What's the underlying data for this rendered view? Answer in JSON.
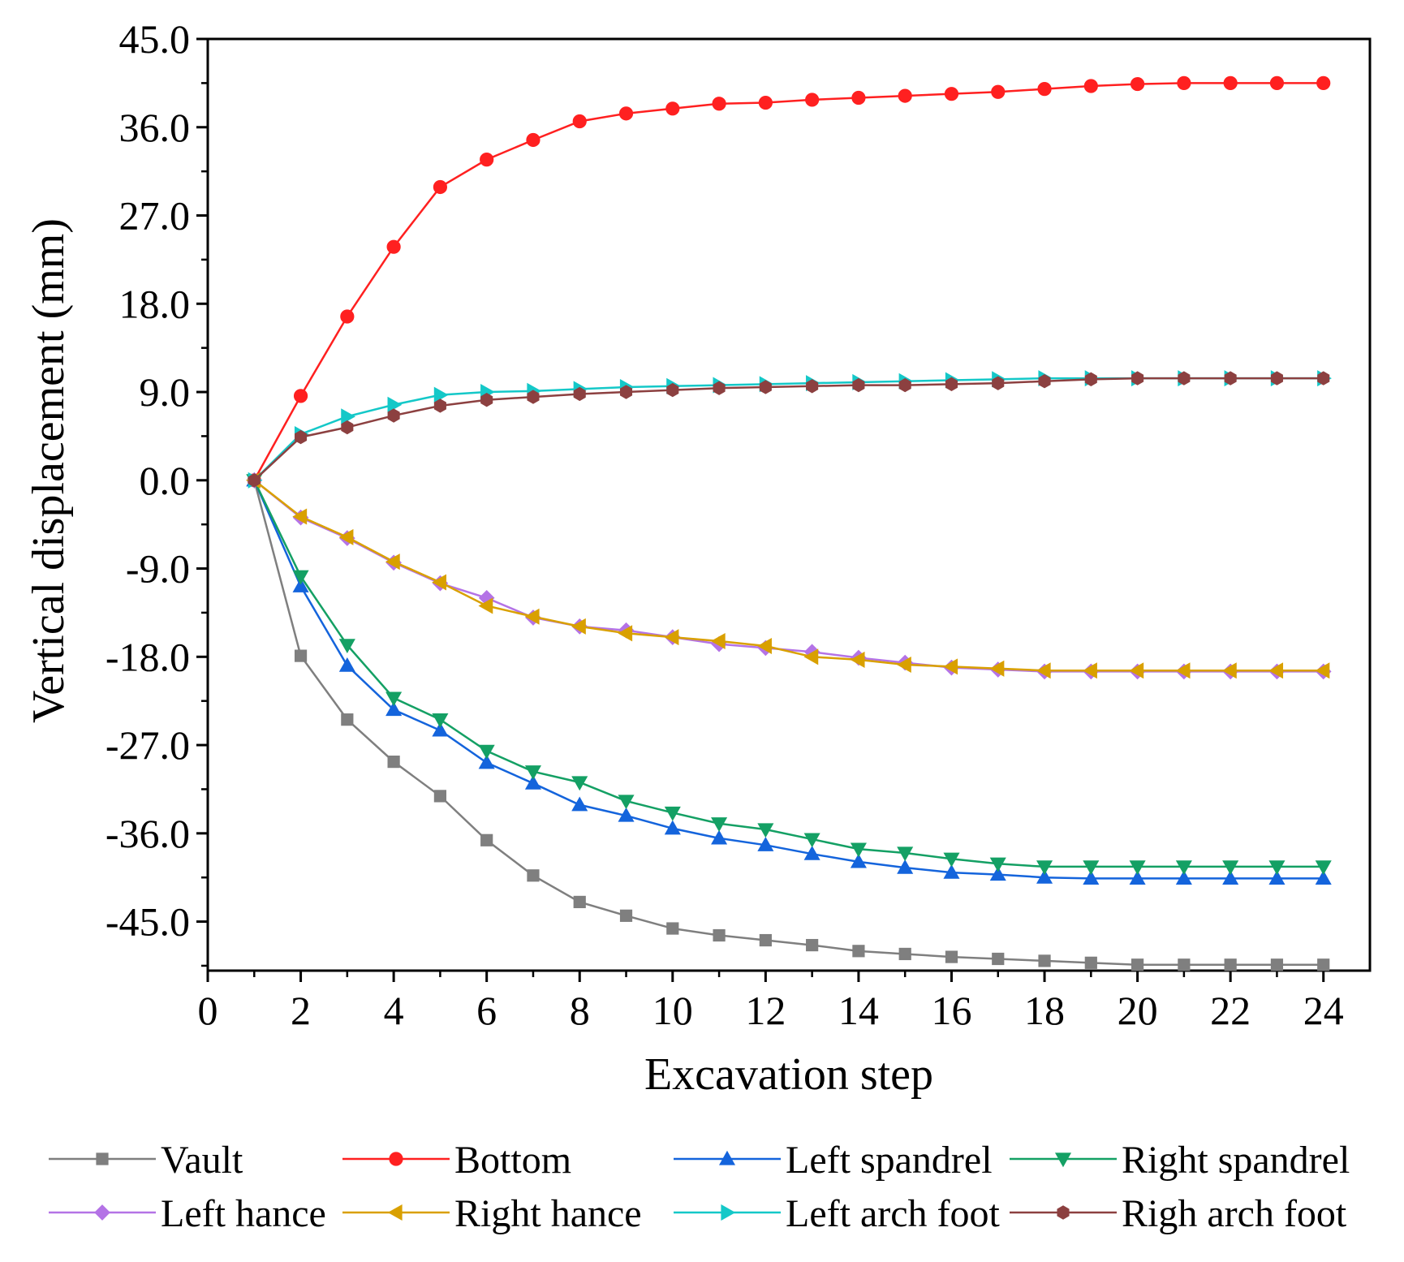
{
  "chart_data": {
    "type": "line",
    "title": "",
    "xlabel": "Excavation step",
    "ylabel": "Vertical displacement (mm)",
    "xlim": [
      0,
      25
    ],
    "ylim": [
      -50,
      45
    ],
    "x_ticks": [
      0,
      2,
      4,
      6,
      8,
      10,
      12,
      14,
      16,
      18,
      20,
      22,
      24
    ],
    "x_tick_labels": [
      "0",
      "2",
      "4",
      "6",
      "8",
      "10",
      "12",
      "14",
      "16",
      "18",
      "20",
      "22",
      "24"
    ],
    "y_ticks": [
      45,
      36,
      27,
      18,
      9,
      0,
      -9,
      -18,
      -27,
      -36,
      -45
    ],
    "y_tick_labels": [
      "45.0",
      "36.0",
      "27.0",
      "18.0",
      "9.0",
      "0.0",
      "-9.0",
      "-18.0",
      "-27.0",
      "-36.0",
      "-45.0"
    ],
    "grid": false,
    "legend_position": "bottom",
    "x": [
      1,
      2,
      3,
      4,
      5,
      6,
      7,
      8,
      9,
      10,
      11,
      12,
      13,
      14,
      15,
      16,
      17,
      18,
      19,
      20,
      21,
      22,
      23,
      24
    ],
    "series": [
      {
        "name": "Vault",
        "color": "#7f7f7f",
        "marker": "square",
        "values": [
          0,
          -17.9,
          -24.4,
          -28.7,
          -32.2,
          -36.7,
          -40.3,
          -43.0,
          -44.4,
          -45.7,
          -46.4,
          -46.9,
          -47.4,
          -48.0,
          -48.3,
          -48.6,
          -48.8,
          -49.0,
          -49.2,
          -49.4,
          -49.4,
          -49.4,
          -49.4,
          -49.4
        ]
      },
      {
        "name": "Bottom",
        "color": "#ff2020",
        "marker": "circle",
        "values": [
          0,
          8.6,
          16.7,
          23.8,
          29.9,
          32.7,
          34.7,
          36.6,
          37.4,
          37.9,
          38.4,
          38.5,
          38.8,
          39.0,
          39.2,
          39.4,
          39.6,
          39.9,
          40.2,
          40.4,
          40.5,
          40.5,
          40.5,
          40.5
        ]
      },
      {
        "name": "Left spandrel",
        "color": "#1464dc",
        "marker": "triangle-up",
        "values": [
          0,
          -10.8,
          -18.9,
          -23.4,
          -25.5,
          -28.8,
          -30.9,
          -33.1,
          -34.2,
          -35.5,
          -36.5,
          -37.2,
          -38.1,
          -38.9,
          -39.5,
          -40.0,
          -40.2,
          -40.5,
          -40.6,
          -40.6,
          -40.6,
          -40.6,
          -40.6,
          -40.6
        ]
      },
      {
        "name": "Right spandrel",
        "color": "#14a064",
        "marker": "triangle-down",
        "values": [
          0,
          -9.8,
          -16.8,
          -22.2,
          -24.4,
          -27.6,
          -29.7,
          -30.8,
          -32.7,
          -33.9,
          -35.0,
          -35.6,
          -36.6,
          -37.6,
          -38.0,
          -38.6,
          -39.1,
          -39.4,
          -39.4,
          -39.4,
          -39.4,
          -39.4,
          -39.4,
          -39.4
        ]
      },
      {
        "name": "Left hance",
        "color": "#b473e6",
        "marker": "diamond",
        "values": [
          0,
          -3.8,
          -5.9,
          -8.4,
          -10.5,
          -12.0,
          -14.0,
          -14.9,
          -15.3,
          -16.0,
          -16.7,
          -17.1,
          -17.5,
          -18.1,
          -18.6,
          -19.1,
          -19.3,
          -19.5,
          -19.5,
          -19.5,
          -19.5,
          -19.5,
          -19.5,
          -19.5
        ]
      },
      {
        "name": "Right hance",
        "color": "#d9a000",
        "marker": "triangle-left",
        "values": [
          0,
          -3.7,
          -5.8,
          -8.3,
          -10.4,
          -12.8,
          -13.9,
          -14.9,
          -15.6,
          -16.0,
          -16.4,
          -16.9,
          -18.0,
          -18.3,
          -18.8,
          -19.0,
          -19.2,
          -19.4,
          -19.4,
          -19.4,
          -19.4,
          -19.4,
          -19.4,
          -19.4
        ]
      },
      {
        "name": "Left arch foot",
        "color": "#14c8c8",
        "marker": "triangle-right",
        "values": [
          0,
          4.7,
          6.5,
          7.7,
          8.7,
          9.0,
          9.1,
          9.3,
          9.5,
          9.6,
          9.7,
          9.8,
          9.9,
          10.0,
          10.1,
          10.2,
          10.3,
          10.4,
          10.4,
          10.4,
          10.4,
          10.4,
          10.4,
          10.4
        ]
      },
      {
        "name": "Righ arch foot",
        "color": "#8c4040",
        "marker": "hexagon",
        "values": [
          0,
          4.4,
          5.4,
          6.6,
          7.6,
          8.2,
          8.5,
          8.8,
          9.0,
          9.2,
          9.4,
          9.5,
          9.6,
          9.7,
          9.7,
          9.8,
          9.9,
          10.1,
          10.3,
          10.4,
          10.4,
          10.4,
          10.4,
          10.4
        ]
      }
    ]
  }
}
